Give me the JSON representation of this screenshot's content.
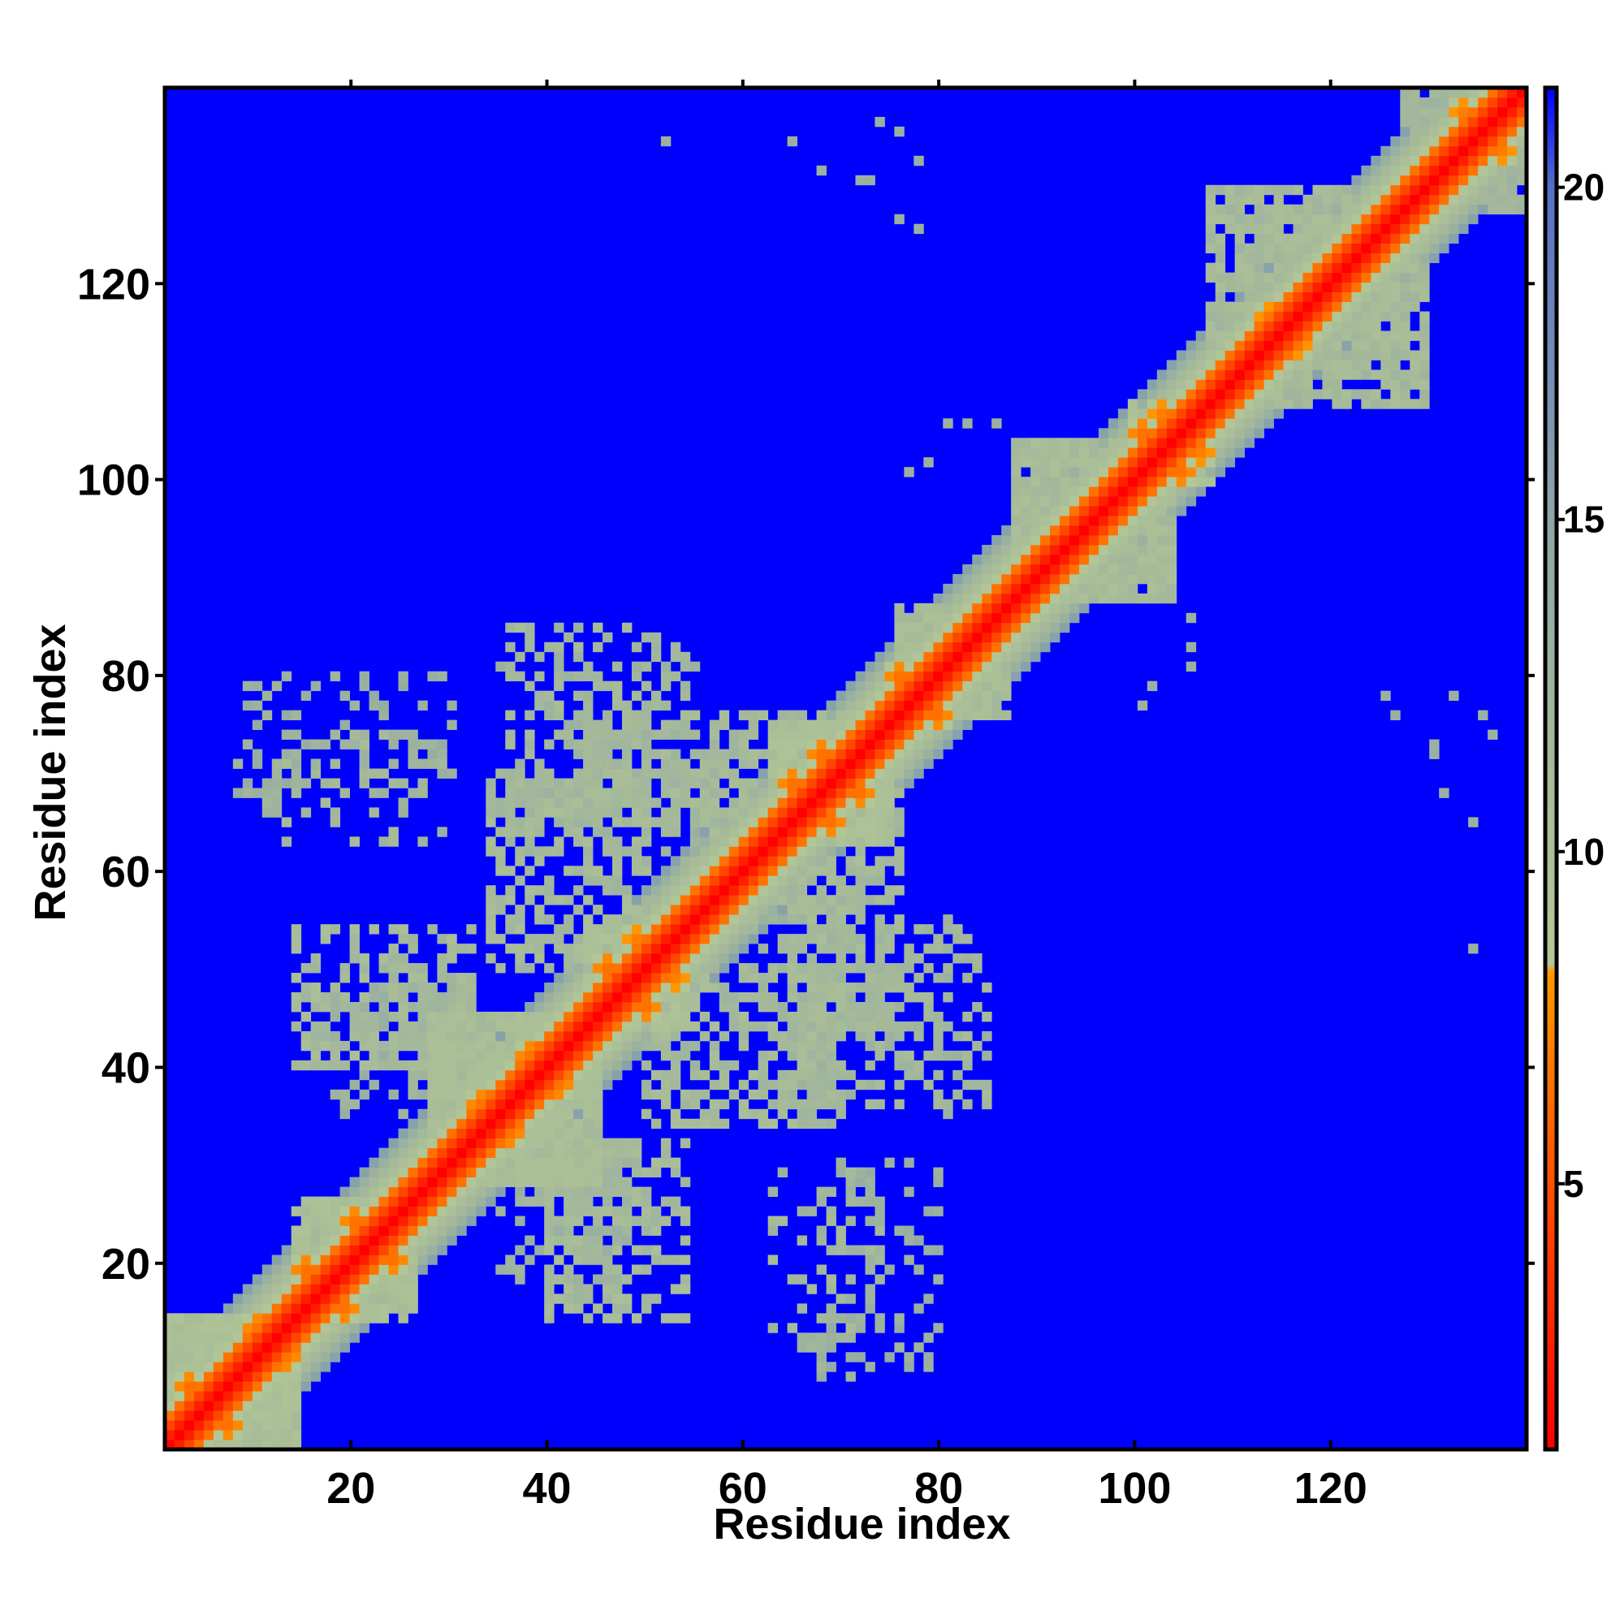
{
  "chart_data": {
    "type": "heatmap",
    "title": "",
    "xlabel": "Residue index",
    "ylabel": "Residue index",
    "xlim": [
      1,
      140
    ],
    "ylim": [
      1,
      140
    ],
    "grid": false,
    "x_ticks": [
      20,
      40,
      60,
      80,
      100,
      120
    ],
    "y_ticks": [
      20,
      40,
      60,
      80,
      100,
      120
    ],
    "colorbar": {
      "range": [
        1,
        21.5
      ],
      "ticks": [
        5,
        10,
        15,
        20
      ],
      "stops": [
        {
          "value": 1.0,
          "color": "#ff0000"
        },
        {
          "value": 5.5,
          "color": "#ff5a00"
        },
        {
          "value": 8.2,
          "color": "#ff9a00"
        },
        {
          "value": 8.3,
          "color": "#b4c896"
        },
        {
          "value": 11.0,
          "color": "#a8bc98"
        },
        {
          "value": 15.0,
          "color": "#8ea6a8"
        },
        {
          "value": 20.0,
          "color": "#5670c8"
        },
        {
          "value": 21.5,
          "color": "#0000ff"
        }
      ]
    },
    "matrix_size": 140,
    "background_value": 21.5,
    "symmetric": true,
    "diagonal_band": [
      {
        "offset": 0,
        "value": 1.0
      },
      {
        "offset": 1,
        "value": 2.5
      },
      {
        "offset": 2,
        "value": 4.5
      },
      {
        "offset": 3,
        "value": 6.5
      },
      {
        "offset": 4,
        "value": 9.0
      },
      {
        "offset": 5,
        "value": 10.5
      },
      {
        "offset": 6,
        "value": 11.5
      },
      {
        "offset": 7,
        "value": 13.0
      },
      {
        "offset": 8,
        "value": 15.5
      }
    ],
    "contact_regions": [
      {
        "i": [
          1,
          14
        ],
        "j": [
          1,
          14
        ],
        "value": 10.5,
        "density": 0.9
      },
      {
        "i": [
          14,
          26
        ],
        "j": [
          14,
          26
        ],
        "value": 10.5,
        "density": 0.85
      },
      {
        "i": [
          28,
          45
        ],
        "j": [
          28,
          45
        ],
        "value": 11.0,
        "density": 0.85
      },
      {
        "i": [
          44,
          54
        ],
        "j": [
          44,
          54
        ],
        "value": 10.5,
        "density": 0.8
      },
      {
        "i": [
          63,
          75
        ],
        "j": [
          63,
          75
        ],
        "value": 10.5,
        "density": 0.85
      },
      {
        "i": [
          76,
          87
        ],
        "j": [
          76,
          87
        ],
        "value": 11.0,
        "density": 0.75
      },
      {
        "i": [
          88,
          104
        ],
        "j": [
          88,
          104
        ],
        "value": 11.0,
        "density": 0.75
      },
      {
        "i": [
          100,
          108
        ],
        "j": [
          100,
          108
        ],
        "value": 10.5,
        "density": 0.8
      },
      {
        "i": [
          108,
          130
        ],
        "j": [
          108,
          130
        ],
        "value": 11.5,
        "density": 0.6
      },
      {
        "i": [
          128,
          140
        ],
        "j": [
          128,
          140
        ],
        "value": 12.0,
        "density": 0.8
      },
      {
        "i": [
          14,
          32
        ],
        "j": [
          40,
          54
        ],
        "value": 11.5,
        "density": 0.55
      },
      {
        "i": [
          34,
          50
        ],
        "j": [
          50,
          70
        ],
        "value": 11.5,
        "density": 0.55
      },
      {
        "i": [
          52,
          76
        ],
        "j": [
          57,
          72
        ],
        "value": 11.5,
        "density": 0.5
      },
      {
        "i": [
          8,
          30
        ],
        "j": [
          68,
          80
        ],
        "value": 13.0,
        "density": 0.28
      },
      {
        "i": [
          35,
          48
        ],
        "j": [
          18,
          30
        ],
        "value": 12.5,
        "density": 0.35
      },
      {
        "i": [
          63,
          75
        ],
        "j": [
          11,
          30
        ],
        "value": 12.0,
        "density": 0.22
      },
      {
        "i": [
          62,
          85
        ],
        "j": [
          36,
          55
        ],
        "value": 12.0,
        "density": 0.35
      },
      {
        "i": [
          43,
          56
        ],
        "j": [
          66,
          80
        ],
        "value": 12.0,
        "density": 0.45
      }
    ],
    "contact_hotspots": [
      {
        "i": 3,
        "j": 7,
        "value": 6.5
      },
      {
        "i": 10,
        "j": 13,
        "value": 6.5
      },
      {
        "i": 15,
        "j": 19,
        "value": 6.5
      },
      {
        "i": 20,
        "j": 24,
        "value": 6.5
      },
      {
        "i": 33,
        "j": 36,
        "value": 6.5
      },
      {
        "i": 38,
        "j": 41,
        "value": 6.5
      },
      {
        "i": 46,
        "j": 50,
        "value": 6.5
      },
      {
        "i": 49,
        "j": 53,
        "value": 7.0
      },
      {
        "i": 65,
        "j": 69,
        "value": 6.5
      },
      {
        "i": 68,
        "j": 72,
        "value": 6.5
      },
      {
        "i": 76,
        "j": 80,
        "value": 6.5
      },
      {
        "i": 101,
        "j": 105,
        "value": 6.5
      },
      {
        "i": 103,
        "j": 107,
        "value": 7.0
      },
      {
        "i": 114,
        "j": 117,
        "value": 7.0
      },
      {
        "i": 134,
        "j": 138,
        "value": 7.0
      }
    ],
    "scattered_contacts": [
      {
        "i": 52,
        "j": 135,
        "value": 13.0
      },
      {
        "i": 65,
        "j": 135,
        "value": 13.0
      },
      {
        "i": 68,
        "j": 132,
        "value": 13.0
      },
      {
        "i": 72,
        "j": 131,
        "value": 13.0
      },
      {
        "i": 74,
        "j": 137,
        "value": 13.0
      },
      {
        "i": 76,
        "j": 136,
        "value": 13.0
      },
      {
        "i": 78,
        "j": 126,
        "value": 13.0
      },
      {
        "i": 83,
        "j": 106,
        "value": 13.0
      },
      {
        "i": 79,
        "j": 102,
        "value": 13.0
      },
      {
        "i": 86,
        "j": 106,
        "value": 13.0
      },
      {
        "i": 106,
        "j": 81,
        "value": 13.0
      },
      {
        "i": 101,
        "j": 77,
        "value": 13.0
      },
      {
        "i": 127,
        "j": 76,
        "value": 13.0
      },
      {
        "i": 131,
        "j": 73,
        "value": 13.0
      },
      {
        "i": 133,
        "j": 78,
        "value": 13.0
      },
      {
        "i": 135,
        "j": 65,
        "value": 13.0
      },
      {
        "i": 135,
        "j": 52,
        "value": 13.0
      },
      {
        "i": 81,
        "j": 35,
        "value": 13.0
      },
      {
        "i": 81,
        "j": 49,
        "value": 13.0
      },
      {
        "i": 38,
        "j": 22,
        "value": 13.0
      }
    ]
  }
}
